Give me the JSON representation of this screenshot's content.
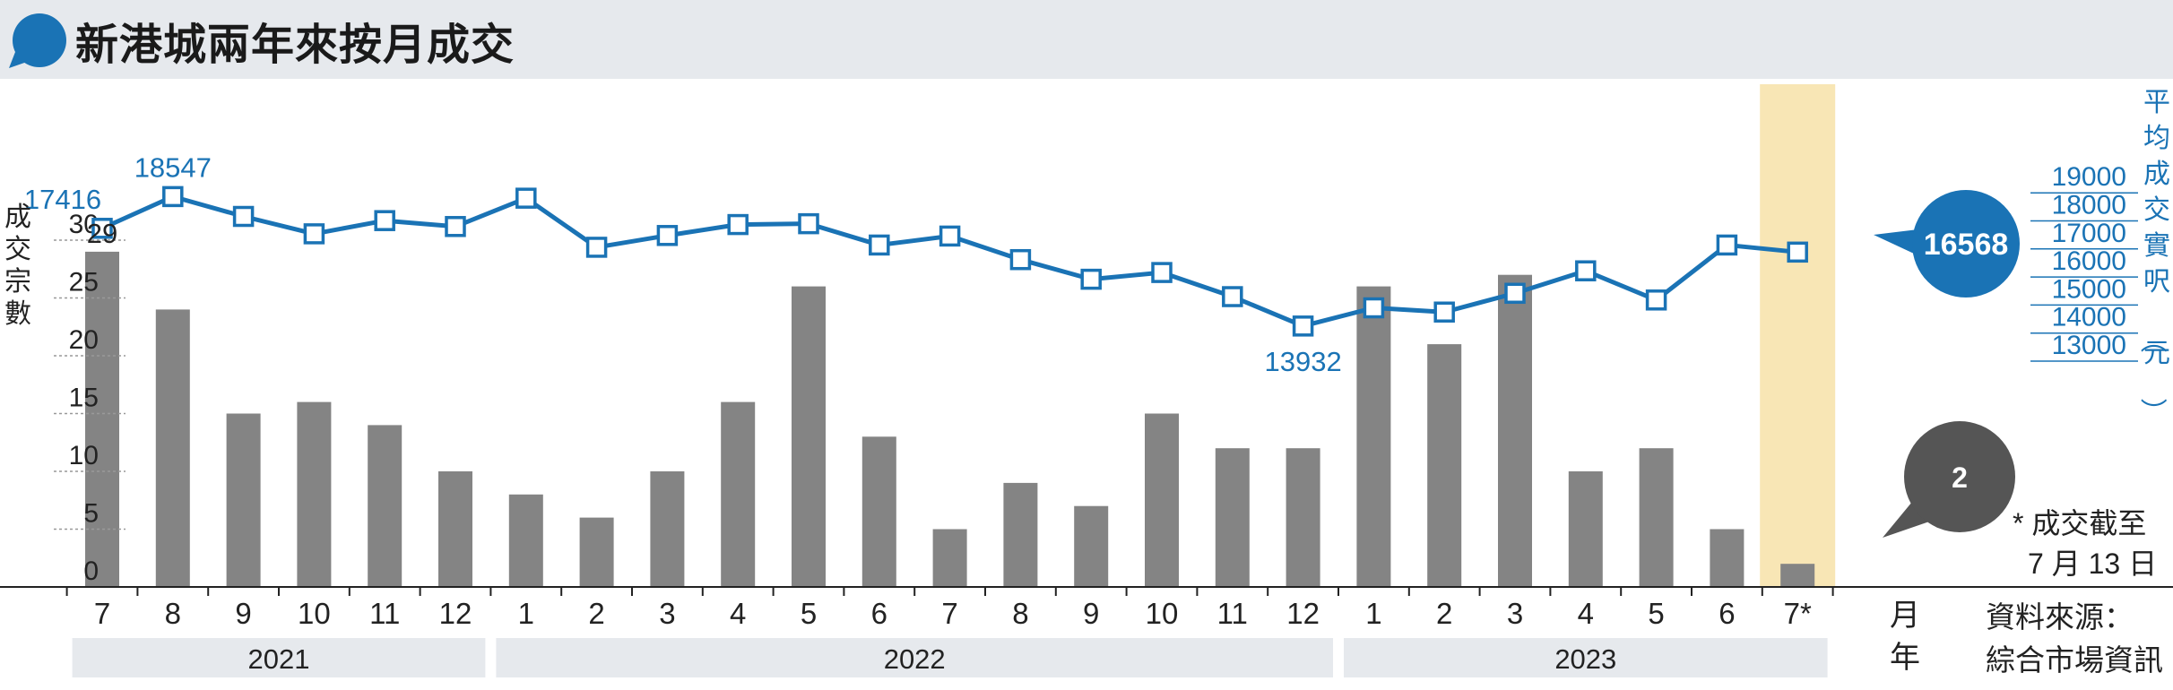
{
  "title": "新港城兩年來按月成交",
  "left_axis_label": "成交宗數",
  "right_axis_label": "平均成交實呎（元）",
  "month_axis_label": "月",
  "year_axis_label": "年",
  "footnote_line1": "* 成交截至",
  "footnote_line2": "7 月 13 日",
  "source_line1": "資料來源：",
  "source_line2": "綜合市場資訊",
  "current_price_label": "16568",
  "current_volume_label": "2",
  "colors": {
    "bar": "#848484",
    "line": "#1a73b5",
    "highlight": "#f8e6b5",
    "year_band": "#e6e9ed",
    "bubble_dark": "#555555"
  },
  "chart_data": {
    "type": "bar+line",
    "categories": [
      "7",
      "8",
      "9",
      "10",
      "11",
      "12",
      "1",
      "2",
      "3",
      "4",
      "5",
      "6",
      "7",
      "8",
      "9",
      "10",
      "11",
      "12",
      "1",
      "2",
      "3",
      "4",
      "5",
      "6",
      "7*"
    ],
    "years": [
      {
        "label": "2021",
        "months": 6
      },
      {
        "label": "2022",
        "months": 12
      },
      {
        "label": "2023",
        "months": 7
      }
    ],
    "series": [
      {
        "name": "成交宗數",
        "axis": "left",
        "type": "bar",
        "values": [
          29,
          24,
          15,
          16,
          14,
          10,
          8,
          6,
          10,
          16,
          26,
          13,
          5,
          9,
          7,
          15,
          12,
          12,
          26,
          21,
          27,
          10,
          12,
          5,
          2
        ]
      },
      {
        "name": "平均成交實呎（元）",
        "axis": "right",
        "type": "line",
        "values": [
          17416,
          18547,
          17840,
          17220,
          17690,
          17480,
          18490,
          16740,
          17160,
          17550,
          17580,
          16820,
          17140,
          16300,
          15600,
          15840,
          14980,
          13932,
          14580,
          14430,
          15100,
          15900,
          14860,
          16820,
          16568
        ]
      }
    ],
    "bar_labels": {
      "0": "29"
    },
    "line_labels": {
      "0": "17416",
      "1": "18547",
      "17": "13932"
    },
    "left_axis": {
      "min": 0,
      "max": 30,
      "ticks": [
        0,
        5,
        10,
        15,
        20,
        25,
        30
      ]
    },
    "right_axis": {
      "min": 13000,
      "max": 19000,
      "ticks": [
        13000,
        14000,
        15000,
        16000,
        17000,
        18000,
        19000
      ]
    },
    "highlight_index": 24,
    "grid": false
  }
}
